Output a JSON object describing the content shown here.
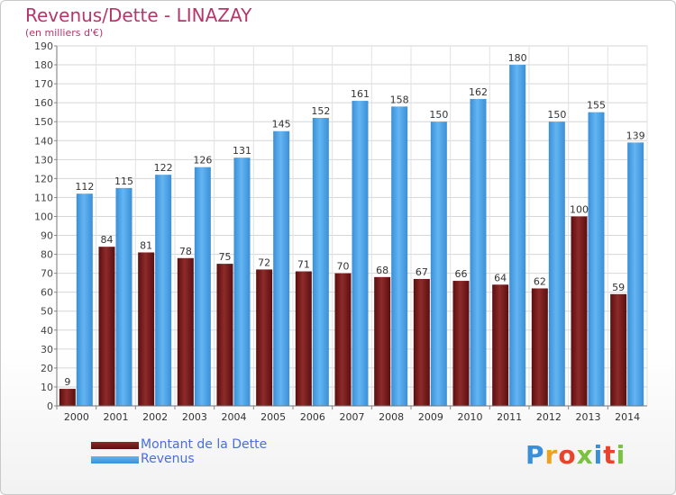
{
  "chart_data": {
    "type": "bar",
    "title": "Revenus/Dette - LINAZAY",
    "subtitle": "(en milliers d'€)",
    "categories": [
      "2000",
      "2001",
      "2002",
      "2003",
      "2004",
      "2005",
      "2006",
      "2007",
      "2008",
      "2009",
      "2010",
      "2011",
      "2012",
      "2013",
      "2014"
    ],
    "series": [
      {
        "name": "Montant de la Dette",
        "color": "#7a1a1a",
        "values": [
          9,
          84,
          81,
          78,
          75,
          72,
          71,
          70,
          68,
          67,
          66,
          64,
          62,
          100,
          59
        ]
      },
      {
        "name": "Revenus",
        "color": "#4aa3e6",
        "values": [
          112,
          115,
          122,
          126,
          131,
          145,
          152,
          161,
          158,
          150,
          162,
          180,
          150,
          155,
          139
        ]
      }
    ],
    "ylim": [
      0,
      190
    ],
    "yticks": [
      0,
      10,
      20,
      30,
      40,
      50,
      60,
      70,
      80,
      90,
      100,
      110,
      120,
      130,
      140,
      150,
      160,
      170,
      180,
      190
    ],
    "grid": true,
    "legend": "bottom-left"
  },
  "logo": {
    "text": "Proxiti"
  }
}
